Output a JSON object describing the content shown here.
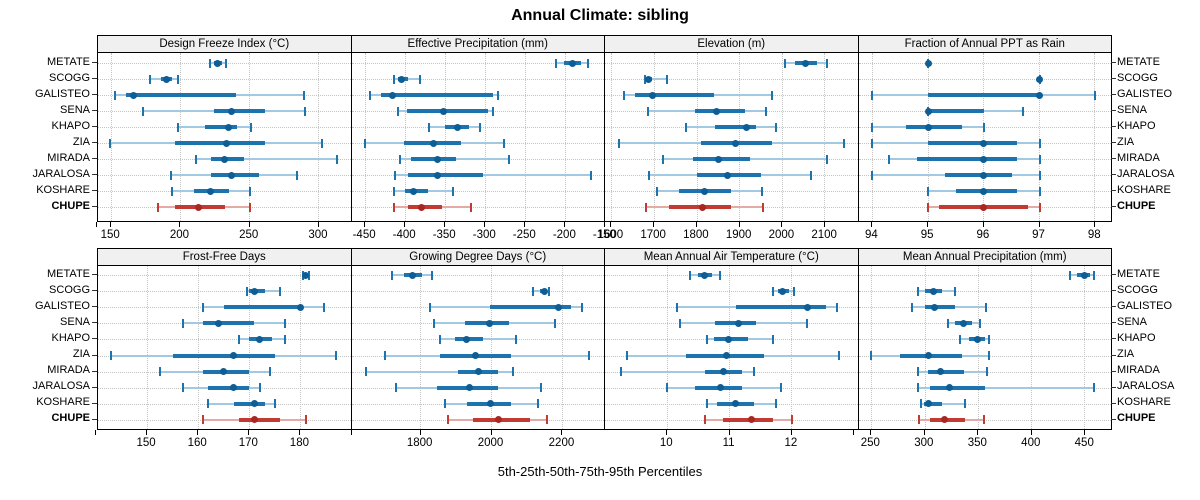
{
  "title": "Annual Climate: sibling",
  "caption": "5th-25th-50th-75th-95th Percentiles",
  "sites": [
    "METATE",
    "SCOGG",
    "GALISTEO",
    "SENA",
    "KHAPO",
    "ZIA",
    "MIRADA",
    "JARALOSA",
    "KOSHARE",
    "CHUPE"
  ],
  "highlight_site": "CHUPE",
  "colors": {
    "blue_light": "#a3c8e2",
    "blue_mid": "#1c73ae",
    "blue_strong": "#0e5d94",
    "red_light": "#e4aaa5",
    "red_mid": "#c23b33",
    "red_strong": "#a82722",
    "gridline": "#c4c4c4",
    "strip_bg": "#f0f0f0",
    "border": "#000000"
  },
  "chart_data": {
    "type": "dotplot-percentiles",
    "percentiles": [
      5,
      25,
      50,
      75,
      95
    ],
    "legend_note": "thin line = 5th-95th, thick bar = 25th-75th, dot = 50th percentile; CHUPE highlighted red",
    "panels": [
      {
        "title": "Design Freeze Index (°C)",
        "row": 0,
        "col": 0,
        "xlim": [
          140.5,
          323.5
        ],
        "ticks": [
          150,
          200,
          250,
          300
        ],
        "extra_ticks": [
          140
        ],
        "values": [
          [
            221,
            224,
            227,
            230,
            233
          ],
          [
            178,
            186,
            190,
            194,
            198
          ],
          [
            153,
            161,
            166,
            240,
            289
          ],
          [
            173,
            224,
            237,
            261,
            290
          ],
          [
            198,
            218,
            235,
            241,
            251
          ],
          [
            149,
            196,
            233,
            261,
            302
          ],
          [
            211,
            222,
            232,
            246,
            313
          ],
          [
            193,
            222,
            237,
            257,
            284
          ],
          [
            194,
            210,
            222,
            235,
            250
          ],
          [
            184,
            196,
            213,
            232,
            250
          ]
        ]
      },
      {
        "title": "Effective Precipitation (mm)",
        "row": 0,
        "col": 1,
        "xlim": [
          -467,
          -150.5
        ],
        "ticks": [
          -450,
          -400,
          -350,
          -300,
          -250,
          -200,
          -150
        ],
        "extra_ticks": [],
        "values": [
          [
            -212,
            -202,
            -191,
            -180,
            -172
          ],
          [
            -414,
            -409,
            -405,
            -397,
            -382
          ],
          [
            -444,
            -430,
            -416,
            -290,
            -284
          ],
          [
            -409,
            -398,
            -352,
            -296,
            -290
          ],
          [
            -370,
            -350,
            -335,
            -320,
            -307
          ],
          [
            -450,
            -402,
            -365,
            -330,
            -276
          ],
          [
            -407,
            -393,
            -360,
            -337,
            -270
          ],
          [
            -413,
            -396,
            -360,
            -303,
            -168
          ],
          [
            -414,
            -400,
            -390,
            -371,
            -340
          ],
          [
            -414,
            -397,
            -380,
            -354,
            -318
          ]
        ]
      },
      {
        "title": "Elevation (m)",
        "row": 0,
        "col": 2,
        "xlim": [
          1585,
          2178
        ],
        "ticks": [
          1600,
          1700,
          1800,
          1900,
          2000,
          2100
        ],
        "extra_ticks": [],
        "values": [
          [
            2005,
            2030,
            2055,
            2080,
            2105
          ],
          [
            1678,
            1682,
            1687,
            1694,
            1730
          ],
          [
            1630,
            1655,
            1697,
            1840,
            1975
          ],
          [
            1685,
            1795,
            1845,
            1912,
            1962
          ],
          [
            1775,
            1842,
            1915,
            1938,
            1985
          ],
          [
            1618,
            1810,
            1890,
            1975,
            2145
          ],
          [
            1720,
            1790,
            1850,
            1925,
            2105
          ],
          [
            1688,
            1800,
            1872,
            1950,
            2068
          ],
          [
            1707,
            1758,
            1818,
            1880,
            1952
          ],
          [
            1682,
            1735,
            1812,
            1880,
            1955
          ]
        ]
      },
      {
        "title": "Fraction of Annual PPT as Rain",
        "row": 0,
        "col": 3,
        "xlim": [
          93.75,
          98.3
        ],
        "ticks": [
          94,
          95,
          96,
          97,
          98
        ],
        "extra_ticks": [],
        "values": [
          [
            95,
            95,
            95,
            95,
            95
          ],
          [
            97,
            97,
            97,
            97,
            97
          ],
          [
            94,
            95,
            97,
            97,
            98
          ],
          [
            95,
            95,
            95,
            96,
            96.7
          ],
          [
            94,
            94.6,
            95,
            95.6,
            96
          ],
          [
            94,
            95,
            96,
            96.6,
            97
          ],
          [
            94.3,
            94.8,
            96,
            96.6,
            97
          ],
          [
            94,
            95.3,
            96,
            96.5,
            97
          ],
          [
            95,
            95.5,
            96,
            96.6,
            97
          ],
          [
            95,
            95.2,
            96,
            96.8,
            97
          ]
        ]
      },
      {
        "title": "Frost-Free Days",
        "row": 1,
        "col": 0,
        "xlim": [
          140.4,
          190
        ],
        "ticks": [
          150,
          160,
          170,
          180
        ],
        "extra_ticks": [
          140,
          190
        ],
        "values": [
          [
            180.5,
            180.8,
            181,
            181.3,
            181.6
          ],
          [
            169.5,
            170,
            171,
            173,
            176
          ],
          [
            161,
            165,
            180,
            180.5,
            184.7
          ],
          [
            157,
            161,
            164,
            171,
            177
          ],
          [
            168,
            170,
            172,
            174.5,
            177
          ],
          [
            143,
            155,
            167,
            175,
            187
          ],
          [
            152.5,
            161,
            165,
            170,
            174
          ],
          [
            157,
            162,
            167,
            170,
            172
          ],
          [
            162,
            167,
            171,
            173,
            175
          ],
          [
            161,
            168,
            171,
            176,
            181
          ]
        ]
      },
      {
        "title": "Growing Degree Days (°C)",
        "row": 1,
        "col": 1,
        "xlim": [
          1605,
          2320
        ],
        "ticks": [
          1800,
          2000,
          2200
        ],
        "extra_ticks": [],
        "values": [
          [
            1720,
            1752,
            1778,
            1805,
            1832
          ],
          [
            2118,
            2138,
            2148,
            2155,
            2162
          ],
          [
            1825,
            1995,
            2190,
            2225,
            2255
          ],
          [
            1838,
            1925,
            1995,
            2050,
            2180
          ],
          [
            1855,
            1896,
            1930,
            1976,
            2070
          ],
          [
            1700,
            1855,
            1955,
            2055,
            2274
          ],
          [
            1645,
            1906,
            1962,
            2018,
            2061
          ],
          [
            1730,
            1845,
            1938,
            2018,
            2140
          ],
          [
            1868,
            1930,
            1998,
            2056,
            2130
          ],
          [
            1878,
            1948,
            2020,
            2108,
            2155
          ]
        ]
      },
      {
        "title": "Mean Annual Air Temperature (°C)",
        "row": 1,
        "col": 2,
        "xlim": [
          9.0,
          13.07
        ],
        "ticks": [
          10,
          11,
          12
        ],
        "extra_ticks": [
          13
        ],
        "values": [
          [
            10.37,
            10.5,
            10.6,
            10.72,
            10.85
          ],
          [
            11.7,
            11.78,
            11.85,
            11.95,
            12.03
          ],
          [
            10.15,
            11.1,
            12.25,
            12.55,
            12.72
          ],
          [
            10.2,
            10.77,
            11.15,
            11.43,
            12.25
          ],
          [
            10.64,
            10.75,
            10.98,
            11.3,
            11.7
          ],
          [
            9.35,
            10.3,
            10.95,
            11.55,
            12.75
          ],
          [
            9.25,
            10.6,
            10.9,
            11.2,
            11.4
          ],
          [
            10.0,
            10.45,
            10.85,
            11.2,
            11.82
          ],
          [
            10.64,
            10.8,
            11.1,
            11.4,
            11.75
          ],
          [
            10.6,
            10.9,
            11.35,
            11.7,
            12.0
          ]
        ]
      },
      {
        "title": "Mean Annual Precipitation (mm)",
        "row": 1,
        "col": 3,
        "xlim": [
          238,
          475
        ],
        "ticks": [
          250,
          300,
          350,
          400,
          450
        ],
        "extra_ticks": [],
        "values": [
          [
            436,
            442,
            449,
            454,
            458
          ],
          [
            294,
            300,
            308,
            316,
            328
          ],
          [
            288,
            300,
            309,
            328,
            357
          ],
          [
            322,
            328,
            336,
            344,
            352
          ],
          [
            333,
            341,
            349,
            356,
            360
          ],
          [
            250,
            277,
            303,
            335,
            360
          ],
          [
            294,
            303,
            315,
            337,
            358
          ],
          [
            294,
            305,
            323,
            356,
            458
          ],
          [
            296,
            299,
            303,
            316,
            338
          ],
          [
            295,
            305,
            318,
            338,
            355
          ]
        ]
      }
    ]
  }
}
